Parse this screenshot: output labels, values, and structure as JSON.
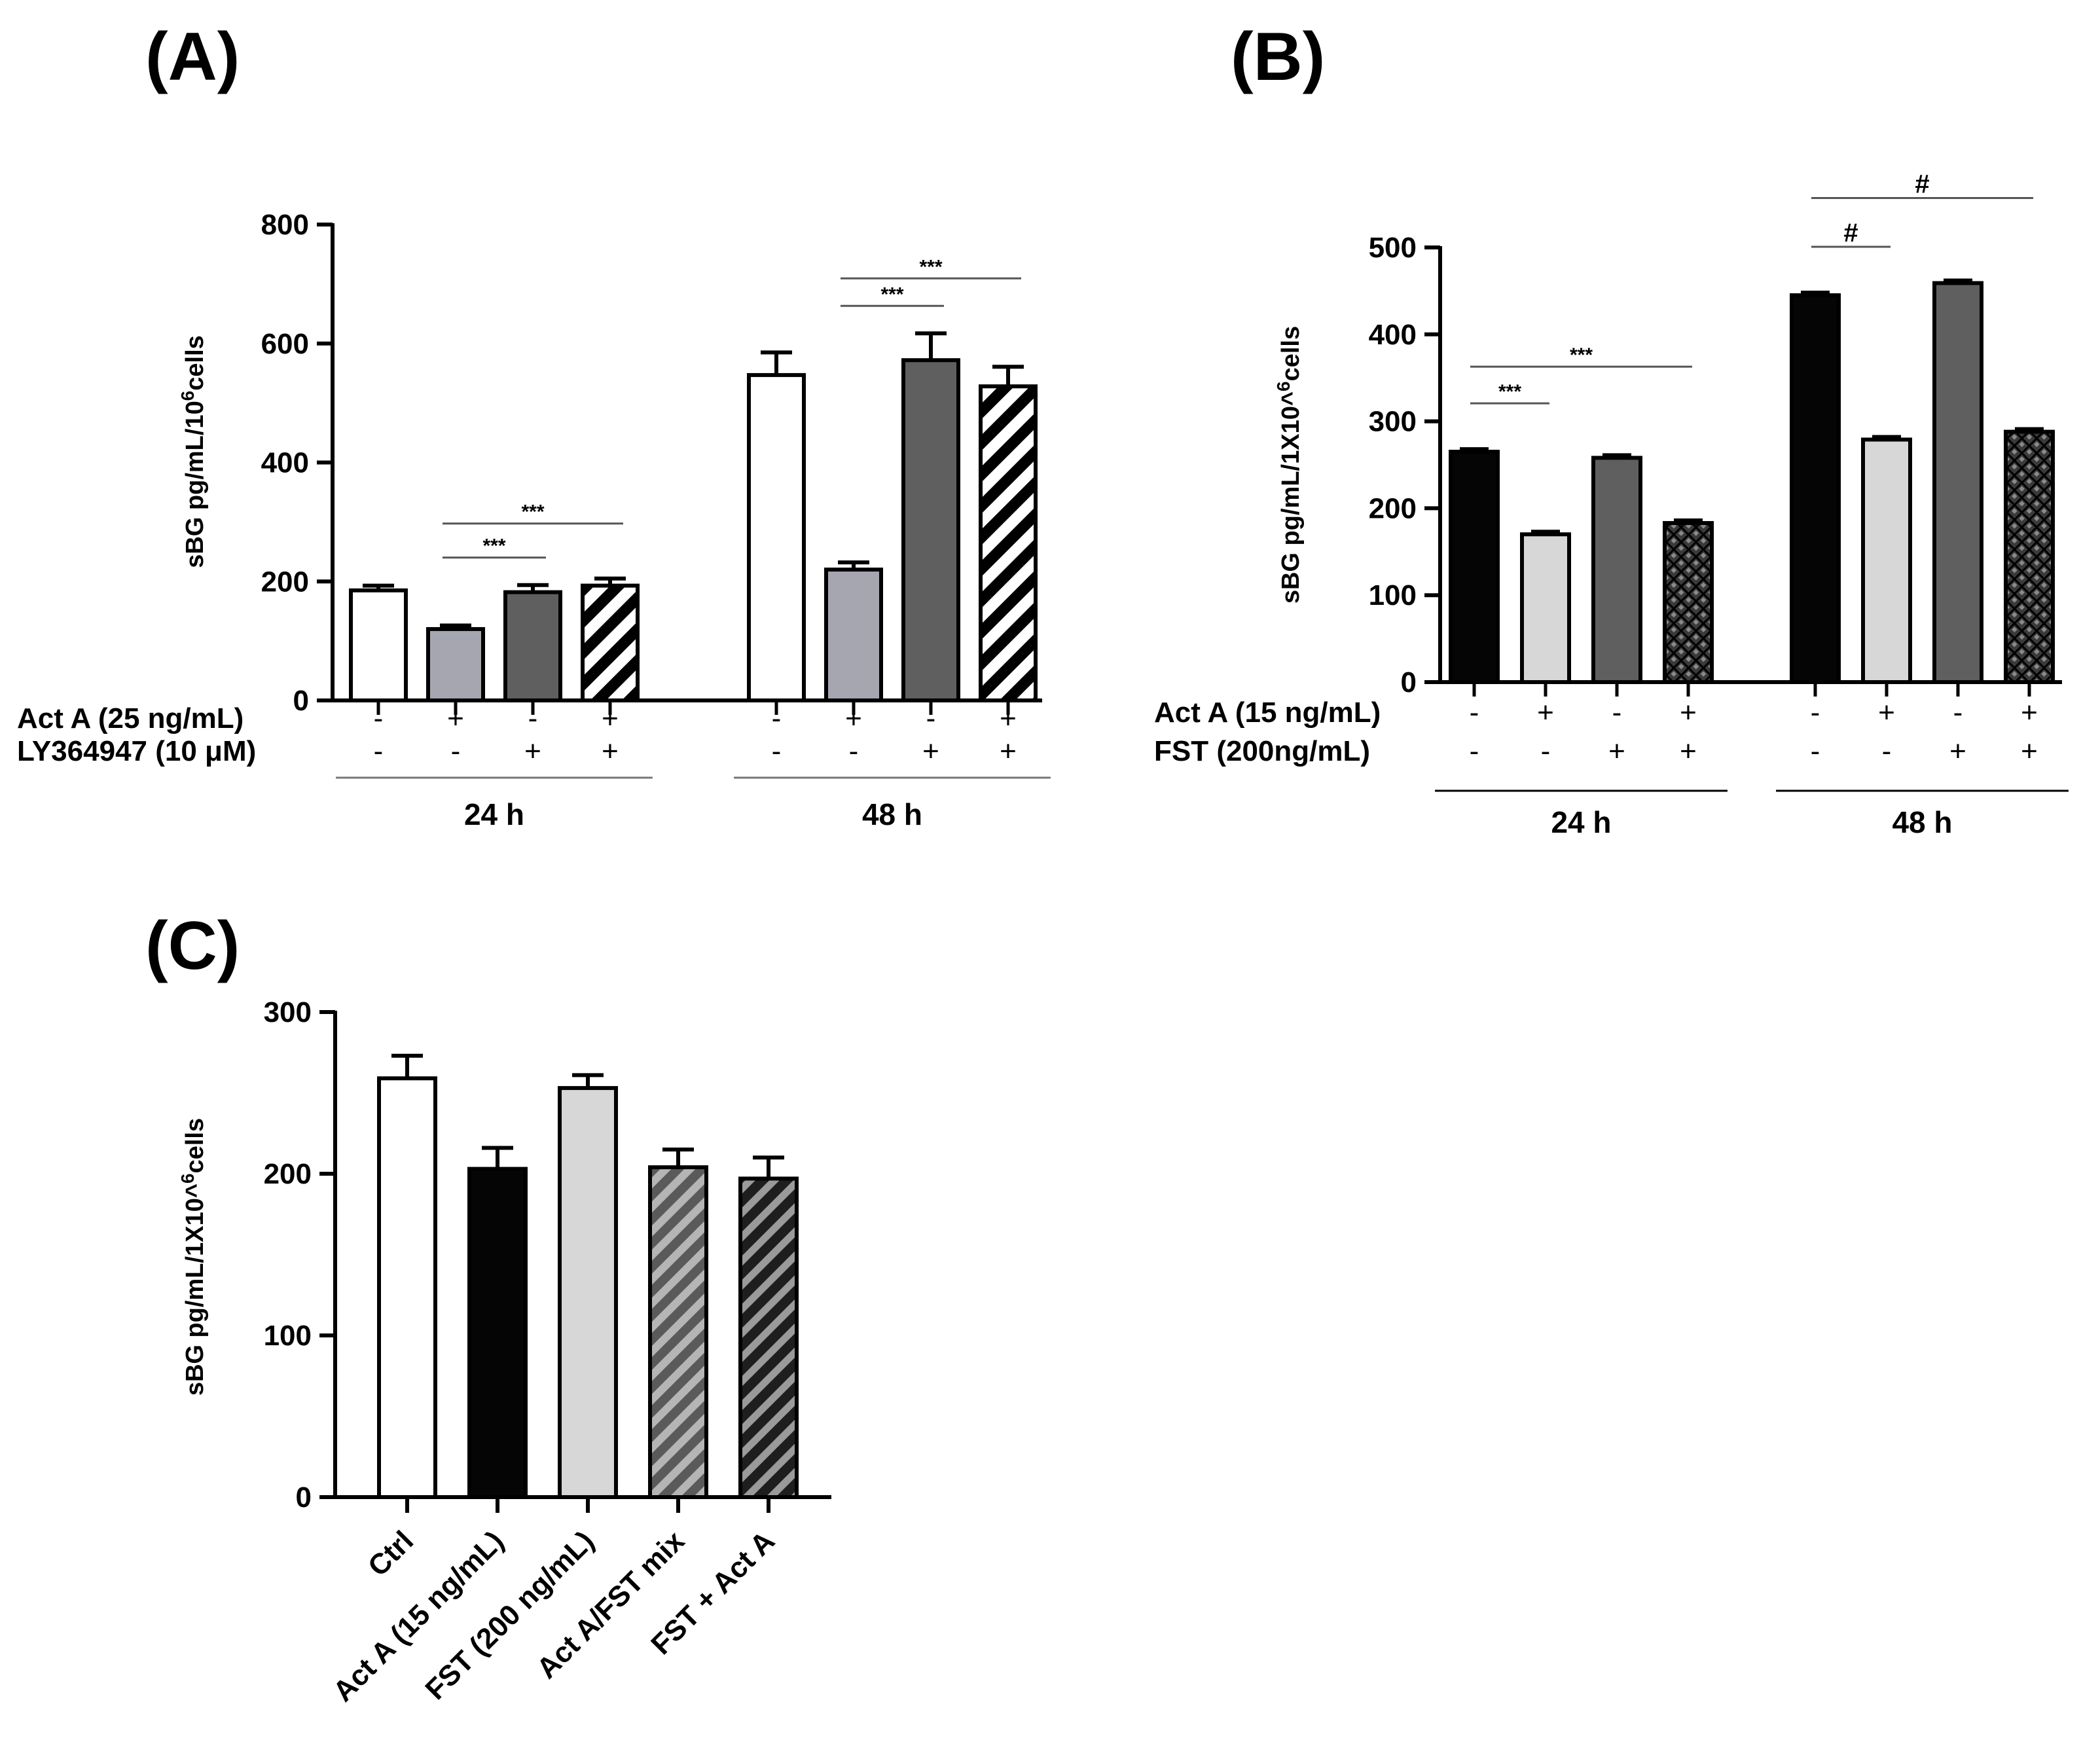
{
  "chart_data": [
    {
      "panel": "(A)",
      "type": "bar",
      "ylabel_main": "sBG pg/mL/10",
      "ylabel_sup": "6",
      "ylabel_tail": "cells",
      "ylim": [
        0,
        800
      ],
      "yticks": [
        0,
        200,
        400,
        600,
        800
      ],
      "conditions": [
        {
          "label": "Act A (25 ng/mL)",
          "signs": [
            "-",
            "+",
            "-",
            "+",
            "-",
            "+",
            "-",
            "+"
          ]
        },
        {
          "label": "LY364947 (10 μM)",
          "signs": [
            "-",
            "-",
            "+",
            "+",
            "-",
            "-",
            "+",
            "+"
          ]
        }
      ],
      "groups": [
        {
          "label": "24 h",
          "values": [
            185,
            120,
            182,
            193
          ],
          "errors": [
            8,
            6,
            12,
            12
          ]
        },
        {
          "label": "48 h",
          "values": [
            547,
            220,
            572,
            528
          ],
          "errors": [
            38,
            12,
            45,
            33
          ]
        }
      ],
      "series_styles": [
        "white",
        "#a6a6b0",
        "#5f5f5f",
        "hatch-diagonal"
      ],
      "significance": [
        {
          "group": 0,
          "from": 1,
          "to": 2,
          "label": "***"
        },
        {
          "group": 0,
          "from": 1,
          "to": 3,
          "label": "***"
        },
        {
          "group": 1,
          "from": 1,
          "to": 2,
          "label": "***"
        },
        {
          "group": 1,
          "from": 1,
          "to": 3,
          "label": "***"
        }
      ]
    },
    {
      "panel": "(B)",
      "type": "bar",
      "ylabel_main": "sBG pg/mL/1X10^",
      "ylabel_sup": "6",
      "ylabel_tail": "cells",
      "ylim": [
        0,
        500
      ],
      "yticks": [
        0,
        100,
        200,
        300,
        400,
        500
      ],
      "conditions": [
        {
          "label": "Act A (15 ng/mL)",
          "signs": [
            "-",
            "+",
            "-",
            "+",
            "-",
            "+",
            "-",
            "+"
          ]
        },
        {
          "label": "FST (200ng/mL)",
          "signs": [
            "-",
            "-",
            "+",
            "+",
            "-",
            "-",
            "+",
            "+"
          ]
        }
      ],
      "groups": [
        {
          "label": "24 h",
          "values": [
            265,
            170,
            258,
            183
          ],
          "errors": [
            3,
            3,
            3,
            3
          ]
        },
        {
          "label": "48 h",
          "values": [
            445,
            279,
            459,
            288
          ],
          "errors": [
            3,
            3,
            3,
            3
          ]
        }
      ],
      "series_styles": [
        "#050505",
        "#d7d7d7",
        "#5f5f5f",
        "crosshatch"
      ],
      "significance": [
        {
          "group": 0,
          "from": 0,
          "to": 1,
          "label": "***"
        },
        {
          "group": 0,
          "from": 0,
          "to": 3,
          "label": "***"
        },
        {
          "group": 1,
          "from": 0,
          "to": 1,
          "label": "#"
        },
        {
          "group": 1,
          "from": 0,
          "to": 3,
          "label": "#"
        }
      ]
    },
    {
      "panel": "(C)",
      "type": "bar",
      "ylabel_main": "sBG pg/mL/1X10^",
      "ylabel_sup": "6",
      "ylabel_tail": "cells",
      "ylim": [
        0,
        300
      ],
      "yticks": [
        0,
        100,
        200,
        300
      ],
      "categories": [
        "Ctrl",
        "Act A (15 ng/mL)",
        "FST (200 ng/mL)",
        "Act A/FST mix",
        "FST + Act A"
      ],
      "values": [
        259,
        203,
        253,
        204,
        197
      ],
      "errors": [
        14,
        13,
        8,
        11,
        13
      ],
      "series_styles": [
        "white",
        "#050505",
        "#d7d7d7",
        "hatch-gray",
        "hatch-dark"
      ]
    }
  ]
}
